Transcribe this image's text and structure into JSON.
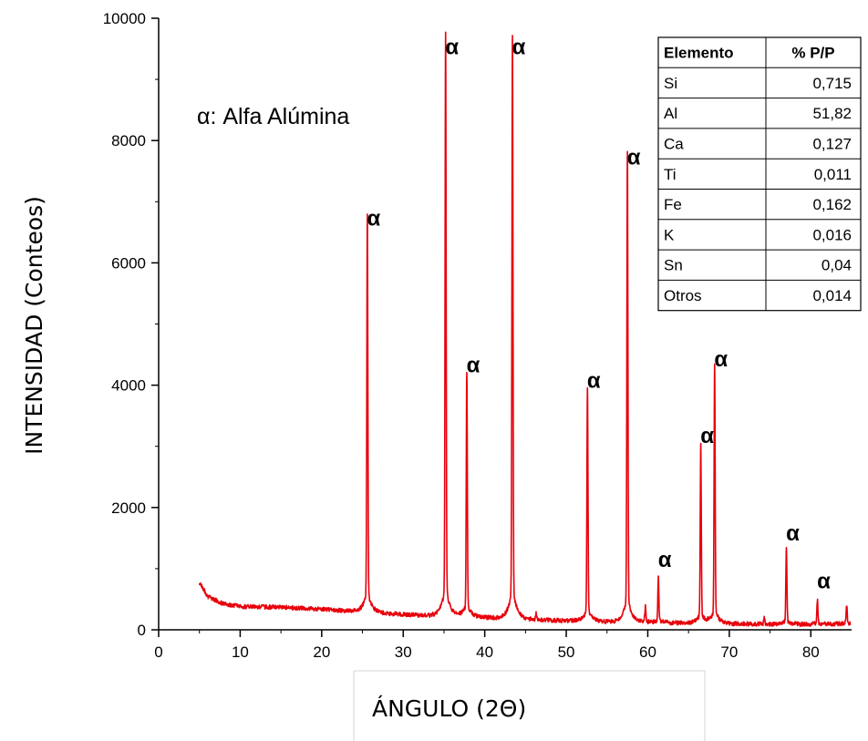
{
  "chart_data": {
    "type": "line",
    "title": "",
    "xlabel": "ÁNGULO (2Θ)",
    "ylabel": "INTENSIDAD (Conteos)",
    "xlim": [
      0,
      85
    ],
    "ylim": [
      0,
      10000
    ],
    "x_ticks": [
      0,
      10,
      20,
      30,
      40,
      50,
      60,
      70,
      80
    ],
    "y_ticks": [
      0,
      2000,
      4000,
      6000,
      8000,
      10000
    ],
    "grid": false,
    "line_color": "#e8000b",
    "background_levels": [
      {
        "x": 5,
        "y": 780
      },
      {
        "x": 6,
        "y": 550
      },
      {
        "x": 8,
        "y": 420
      },
      {
        "x": 10,
        "y": 380
      },
      {
        "x": 15,
        "y": 370
      },
      {
        "x": 20,
        "y": 340
      },
      {
        "x": 24,
        "y": 300
      },
      {
        "x": 30,
        "y": 250
      },
      {
        "x": 35,
        "y": 220
      },
      {
        "x": 40,
        "y": 200
      },
      {
        "x": 45,
        "y": 170
      },
      {
        "x": 50,
        "y": 150
      },
      {
        "x": 55,
        "y": 130
      },
      {
        "x": 60,
        "y": 120
      },
      {
        "x": 65,
        "y": 110
      },
      {
        "x": 70,
        "y": 100
      },
      {
        "x": 75,
        "y": 90
      },
      {
        "x": 80,
        "y": 90
      },
      {
        "x": 85,
        "y": 100
      }
    ],
    "peaks": [
      {
        "x": 25.6,
        "y": 6400,
        "label": "α"
      },
      {
        "x": 35.2,
        "y": 9200,
        "label": "α"
      },
      {
        "x": 37.8,
        "y": 4000,
        "label": "α"
      },
      {
        "x": 43.4,
        "y": 9200,
        "label": "α"
      },
      {
        "x": 52.6,
        "y": 3750,
        "label": "α"
      },
      {
        "x": 57.5,
        "y": 7400,
        "label": "α"
      },
      {
        "x": 61.3,
        "y": 820,
        "label": "α"
      },
      {
        "x": 66.5,
        "y": 2850,
        "label": "α"
      },
      {
        "x": 68.2,
        "y": 4100,
        "label": "α"
      },
      {
        "x": 77.0,
        "y": 1250,
        "label": "α"
      },
      {
        "x": 80.8,
        "y": 470,
        "label": "α"
      }
    ],
    "minor_peaks": [
      {
        "x": 59.7,
        "y": 360
      },
      {
        "x": 84.4,
        "y": 380
      },
      {
        "x": 46.3,
        "y": 280
      },
      {
        "x": 74.3,
        "y": 200
      }
    ],
    "annotations": [
      {
        "text": "α: Alfa Alúmina"
      }
    ],
    "table": {
      "headers": [
        "Elemento",
        "% P/P"
      ],
      "rows": [
        [
          "Si",
          "0,715"
        ],
        [
          "Al",
          "51,82"
        ],
        [
          "Ca",
          "0,127"
        ],
        [
          "Ti",
          "0,011"
        ],
        [
          "Fe",
          "0,162"
        ],
        [
          "K",
          "0,016"
        ],
        [
          "Sn",
          "0,04"
        ],
        [
          "Otros",
          "0,014"
        ]
      ]
    }
  }
}
